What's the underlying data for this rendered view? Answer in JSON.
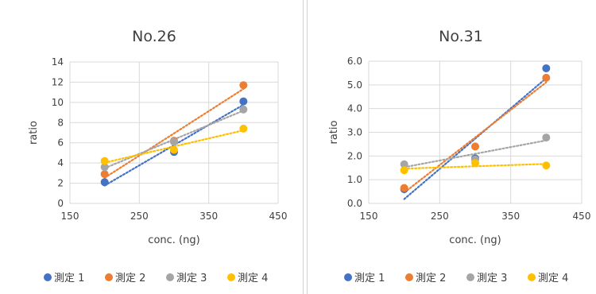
{
  "chart_data": [
    {
      "type": "scatter",
      "title": "No.26",
      "xlabel": "conc. (ng)",
      "ylabel": "ratio",
      "xlim": [
        150,
        450
      ],
      "ylim": [
        0,
        14
      ],
      "x_ticks": [
        "150",
        "250",
        "350",
        "450"
      ],
      "y_ticks": [
        "0",
        "2",
        "4",
        "6",
        "8",
        "10",
        "12",
        "14"
      ],
      "grid": true,
      "trendlines": "linear, dotted",
      "legend_position": "bottom",
      "series": [
        {
          "name": "測定 1",
          "color": "#4472C4",
          "x": [
            200,
            300,
            400
          ],
          "y": [
            2.1,
            5.1,
            10.1
          ]
        },
        {
          "name": "測定 2",
          "color": "#ED7D31",
          "x": [
            200,
            300,
            400
          ],
          "y": [
            2.9,
            6.2,
            11.7
          ]
        },
        {
          "name": "測定 3",
          "color": "#A5A5A5",
          "x": [
            200,
            300,
            400
          ],
          "y": [
            3.6,
            6.1,
            9.3
          ]
        },
        {
          "name": "測定 4",
          "color": "#FFC000",
          "x": [
            200,
            300,
            400
          ],
          "y": [
            4.2,
            5.3,
            7.4
          ]
        }
      ]
    },
    {
      "type": "scatter",
      "title": "No.31",
      "xlabel": "conc. (ng)",
      "ylabel": "ratio",
      "xlim": [
        150,
        450
      ],
      "ylim": [
        0,
        6
      ],
      "x_ticks": [
        "150",
        "250",
        "350",
        "450"
      ],
      "y_ticks": [
        "0.0",
        "1.0",
        "2.0",
        "3.0",
        "4.0",
        "5.0",
        "6.0"
      ],
      "grid": true,
      "trendlines": "linear, dotted",
      "legend_position": "bottom",
      "series": [
        {
          "name": "測定 1",
          "color": "#4472C4",
          "x": [
            200,
            300,
            400
          ],
          "y": [
            0.6,
            1.9,
            5.7
          ]
        },
        {
          "name": "測定 2",
          "color": "#ED7D31",
          "x": [
            200,
            300,
            400
          ],
          "y": [
            0.65,
            2.4,
            5.3
          ]
        },
        {
          "name": "測定 3",
          "color": "#A5A5A5",
          "x": [
            200,
            300,
            400
          ],
          "y": [
            1.65,
            1.85,
            2.78
          ]
        },
        {
          "name": "測定 4",
          "color": "#FFC000",
          "x": [
            200,
            300,
            400
          ],
          "y": [
            1.4,
            1.7,
            1.6
          ]
        }
      ]
    }
  ]
}
